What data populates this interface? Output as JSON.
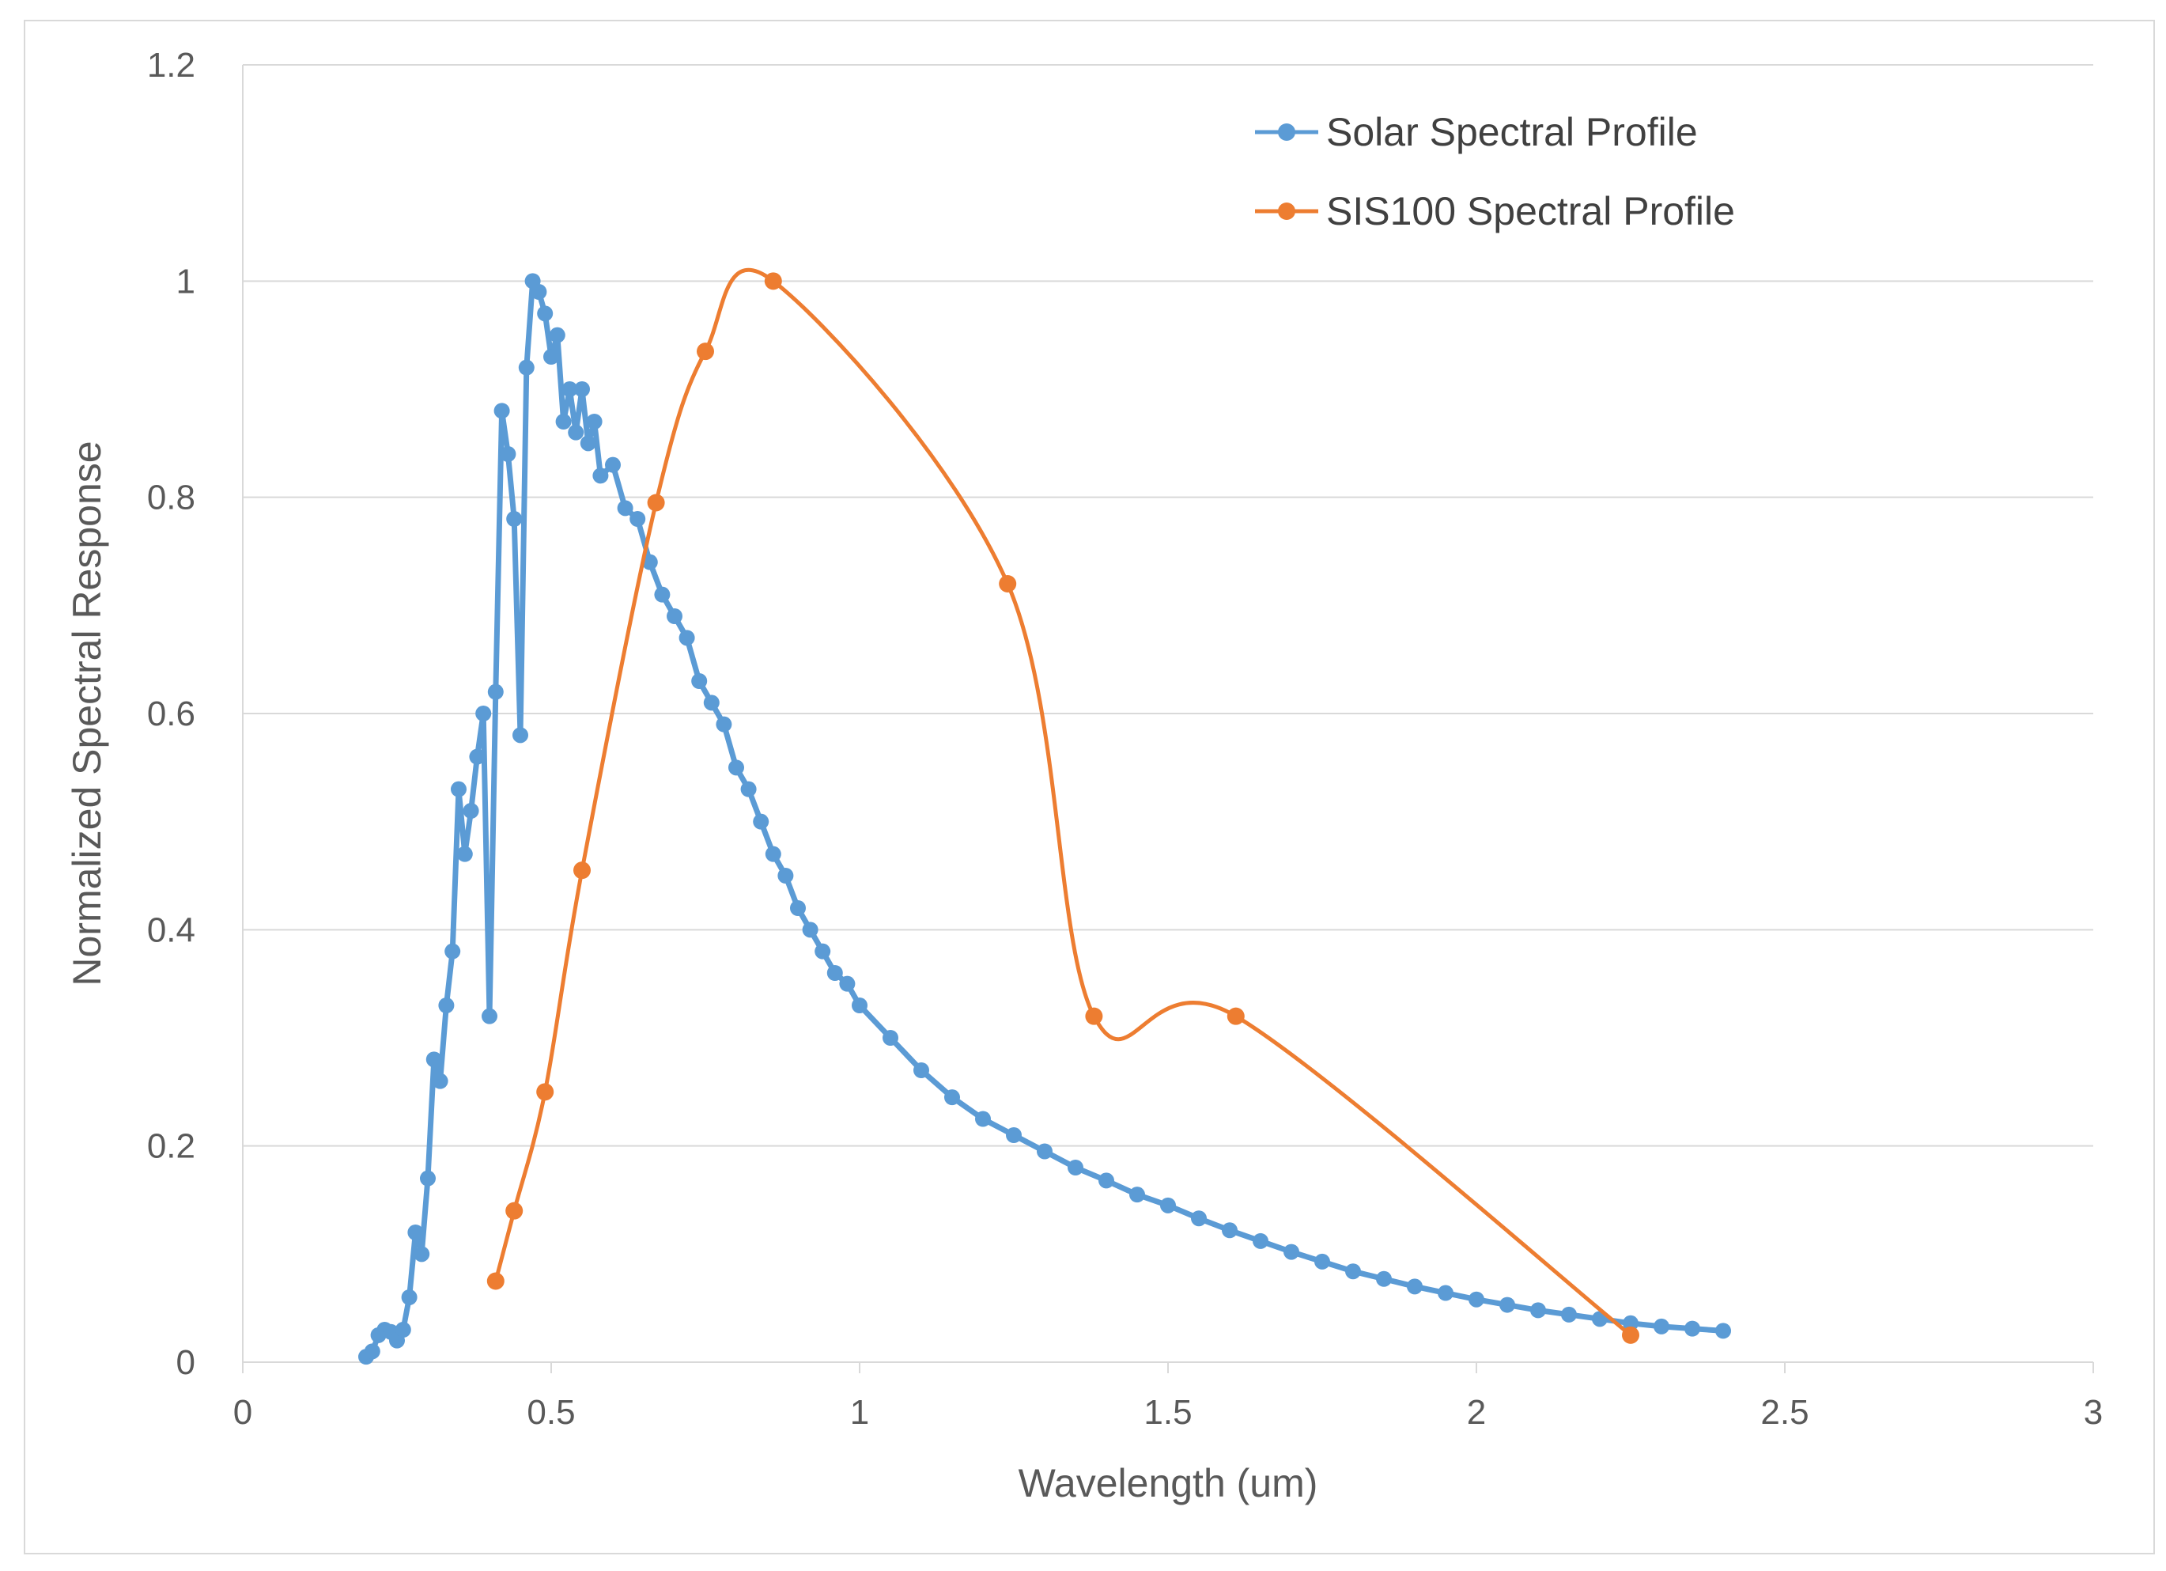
{
  "chart_data": {
    "type": "line",
    "title": "",
    "xlabel": "Wavelength (um)",
    "ylabel": "Normalized Spectral Response",
    "xlim": [
      0,
      3
    ],
    "ylim": [
      0,
      1.2
    ],
    "xticks": [
      "0",
      "0.5",
      "1",
      "1.5",
      "2",
      "2.5",
      "3"
    ],
    "yticks": [
      "0",
      "0.2",
      "0.4",
      "0.6",
      "0.8",
      "1",
      "1.2"
    ],
    "grid": "horizontal",
    "legend_position": "top-right",
    "series": [
      {
        "name": "Solar Spectral Profile",
        "color": "#5b9bd5",
        "smooth": false,
        "points": [
          [
            0.2,
            0.005
          ],
          [
            0.21,
            0.01
          ],
          [
            0.22,
            0.025
          ],
          [
            0.23,
            0.03
          ],
          [
            0.24,
            0.028
          ],
          [
            0.25,
            0.02
          ],
          [
            0.26,
            0.03
          ],
          [
            0.27,
            0.06
          ],
          [
            0.28,
            0.12
          ],
          [
            0.29,
            0.1
          ],
          [
            0.3,
            0.17
          ],
          [
            0.31,
            0.28
          ],
          [
            0.32,
            0.26
          ],
          [
            0.33,
            0.33
          ],
          [
            0.34,
            0.38
          ],
          [
            0.35,
            0.53
          ],
          [
            0.36,
            0.47
          ],
          [
            0.37,
            0.51
          ],
          [
            0.38,
            0.56
          ],
          [
            0.39,
            0.6
          ],
          [
            0.4,
            0.32
          ],
          [
            0.41,
            0.62
          ],
          [
            0.42,
            0.88
          ],
          [
            0.43,
            0.84
          ],
          [
            0.44,
            0.78
          ],
          [
            0.45,
            0.58
          ],
          [
            0.46,
            0.92
          ],
          [
            0.47,
            1.0
          ],
          [
            0.48,
            0.99
          ],
          [
            0.49,
            0.97
          ],
          [
            0.5,
            0.93
          ],
          [
            0.51,
            0.95
          ],
          [
            0.52,
            0.87
          ],
          [
            0.53,
            0.9
          ],
          [
            0.54,
            0.86
          ],
          [
            0.55,
            0.9
          ],
          [
            0.56,
            0.85
          ],
          [
            0.57,
            0.87
          ],
          [
            0.58,
            0.82
          ],
          [
            0.6,
            0.83
          ],
          [
            0.62,
            0.79
          ],
          [
            0.64,
            0.78
          ],
          [
            0.66,
            0.74
          ],
          [
            0.68,
            0.71
          ],
          [
            0.7,
            0.69
          ],
          [
            0.72,
            0.67
          ],
          [
            0.74,
            0.63
          ],
          [
            0.76,
            0.61
          ],
          [
            0.78,
            0.59
          ],
          [
            0.8,
            0.55
          ],
          [
            0.82,
            0.53
          ],
          [
            0.84,
            0.5
          ],
          [
            0.86,
            0.47
          ],
          [
            0.88,
            0.45
          ],
          [
            0.9,
            0.42
          ],
          [
            0.92,
            0.4
          ],
          [
            0.94,
            0.38
          ],
          [
            0.96,
            0.36
          ],
          [
            0.98,
            0.35
          ],
          [
            1.0,
            0.33
          ],
          [
            1.05,
            0.3
          ],
          [
            1.1,
            0.27
          ],
          [
            1.15,
            0.245
          ],
          [
            1.2,
            0.225
          ],
          [
            1.25,
            0.21
          ],
          [
            1.3,
            0.195
          ],
          [
            1.35,
            0.18
          ],
          [
            1.4,
            0.168
          ],
          [
            1.45,
            0.155
          ],
          [
            1.5,
            0.145
          ],
          [
            1.55,
            0.133
          ],
          [
            1.6,
            0.122
          ],
          [
            1.65,
            0.112
          ],
          [
            1.7,
            0.102
          ],
          [
            1.75,
            0.093
          ],
          [
            1.8,
            0.084
          ],
          [
            1.85,
            0.077
          ],
          [
            1.9,
            0.07
          ],
          [
            1.95,
            0.064
          ],
          [
            2.0,
            0.058
          ],
          [
            2.05,
            0.053
          ],
          [
            2.1,
            0.048
          ],
          [
            2.15,
            0.044
          ],
          [
            2.2,
            0.04
          ],
          [
            2.25,
            0.036
          ],
          [
            2.3,
            0.033
          ],
          [
            2.35,
            0.031
          ],
          [
            2.4,
            0.029
          ]
        ]
      },
      {
        "name": "SIS100 Spectral Profile",
        "color": "#ed7d31",
        "smooth": true,
        "points": [
          [
            0.41,
            0.075
          ],
          [
            0.44,
            0.14
          ],
          [
            0.49,
            0.25
          ],
          [
            0.55,
            0.455
          ],
          [
            0.67,
            0.795
          ],
          [
            0.75,
            0.935
          ],
          [
            0.86,
            1.0
          ],
          [
            1.24,
            0.72
          ],
          [
            1.38,
            0.32
          ],
          [
            1.61,
            0.32
          ],
          [
            2.25,
            0.025
          ]
        ]
      }
    ]
  }
}
